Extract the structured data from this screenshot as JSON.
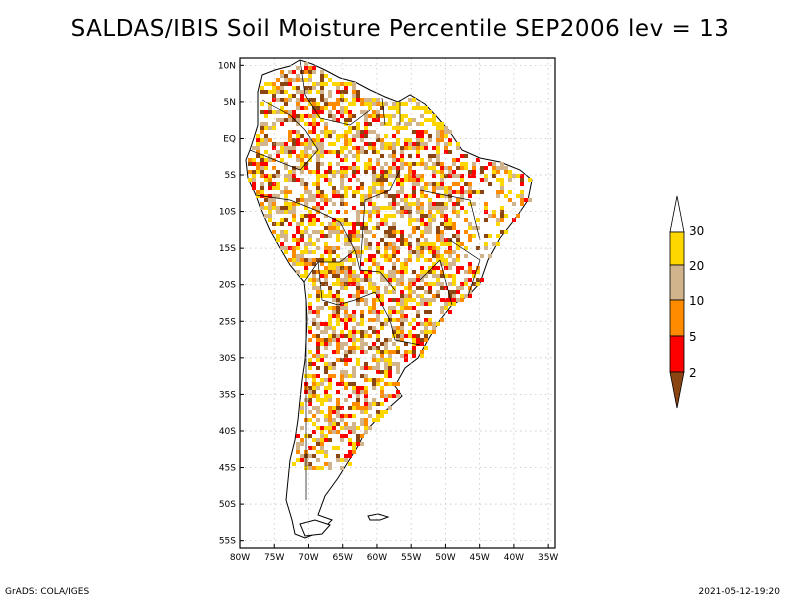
{
  "title": "SALDAS/IBIS Soil Moisture Percentile SEP2006 lev = 13",
  "map": {
    "lat_labels": [
      "10N",
      "5N",
      "EQ",
      "5S",
      "10S",
      "15S",
      "20S",
      "25S",
      "30S",
      "35S",
      "40S",
      "45S",
      "50S",
      "55S"
    ],
    "lon_labels": [
      "80W",
      "75W",
      "70W",
      "65W",
      "60W",
      "55W",
      "50W",
      "45W",
      "40W",
      "35W"
    ],
    "lon_range": [
      -80,
      -34
    ],
    "lat_range": [
      -56,
      11
    ]
  },
  "legend": {
    "labels": [
      "30",
      "20",
      "10",
      "5",
      "2"
    ],
    "colors": {
      "above_30": "#ffffff",
      "20_30": "#ffd700",
      "10_20": "#d2b48c",
      "5_10": "#ff8c00",
      "2_5": "#ff0000",
      "below_2": "#8b4513"
    }
  },
  "footer": {
    "left": "GrADS: COLA/IGES",
    "right": "2021-05-12-19:20"
  }
}
